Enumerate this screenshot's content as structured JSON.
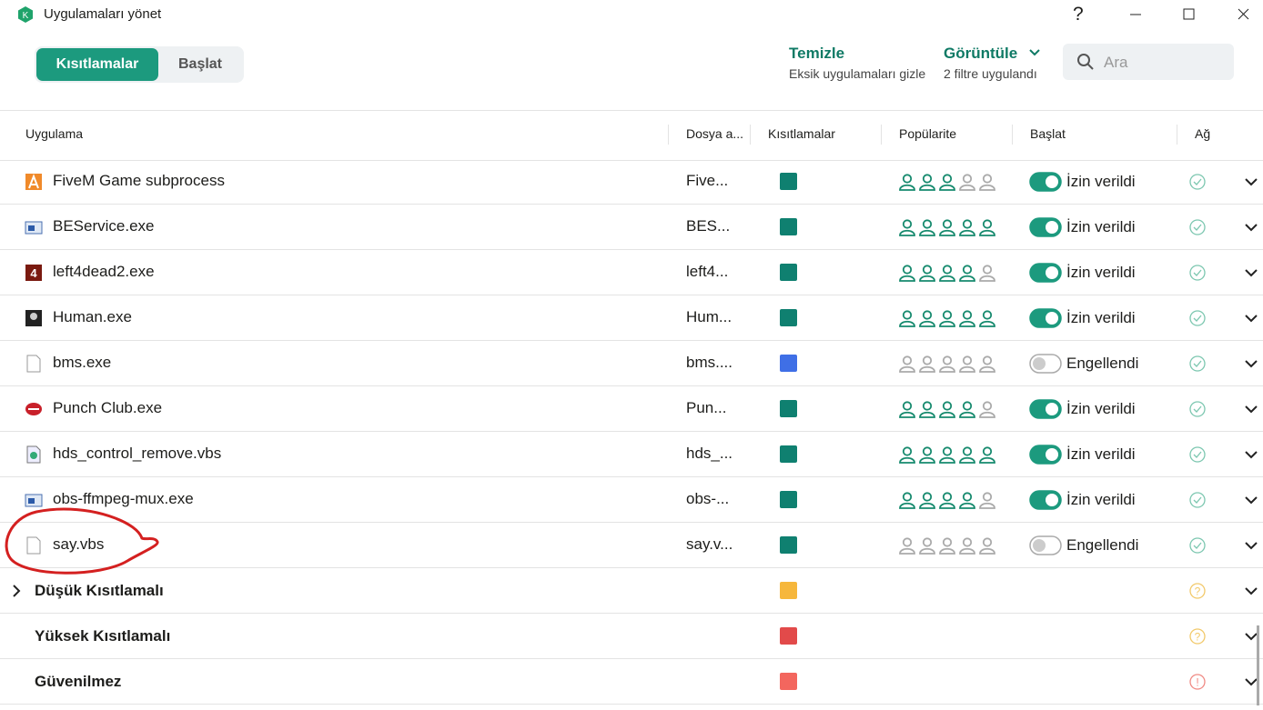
{
  "window": {
    "title": "Uygulamaları yönet",
    "help": "?"
  },
  "tabs": {
    "items": [
      "Kısıtlamalar",
      "Başlat"
    ],
    "active": 0
  },
  "actions": {
    "clean": {
      "title": "Temizle",
      "subtitle": "Eksik uygulamaları gizle"
    },
    "view": {
      "title": "Görüntüle",
      "subtitle": "2 filtre uygulandı"
    }
  },
  "search": {
    "placeholder": "Ara"
  },
  "columns": [
    "Uygulama",
    "Dosya a...",
    "Kısıtlamalar",
    "Popülarite",
    "Başlat",
    "Ağ"
  ],
  "rows": [
    {
      "name": "FiveM Game subprocess",
      "file": "Five...",
      "restriction_color": "#0f8070",
      "popularity": 3,
      "allowed": true,
      "status": "İzin verildi"
    },
    {
      "name": "BEService.exe",
      "file": "BES...",
      "restriction_color": "#0f8070",
      "popularity": 5,
      "allowed": true,
      "status": "İzin verildi"
    },
    {
      "name": "left4dead2.exe",
      "file": "left4...",
      "restriction_color": "#0f8070",
      "popularity": 4,
      "allowed": true,
      "status": "İzin verildi"
    },
    {
      "name": "Human.exe",
      "file": "Hum...",
      "restriction_color": "#0f8070",
      "popularity": 5,
      "allowed": true,
      "status": "İzin verildi"
    },
    {
      "name": "bms.exe",
      "file": "bms....",
      "restriction_color": "#3f6fe6",
      "popularity": 0,
      "allowed": false,
      "status": "Engellendi"
    },
    {
      "name": "Punch Club.exe",
      "file": "Pun...",
      "restriction_color": "#0f8070",
      "popularity": 4,
      "allowed": true,
      "status": "İzin verildi"
    },
    {
      "name": "hds_control_remove.vbs",
      "file": "hds_...",
      "restriction_color": "#0f8070",
      "popularity": 5,
      "allowed": true,
      "status": "İzin verildi"
    },
    {
      "name": "obs-ffmpeg-mux.exe",
      "file": "obs-...",
      "restriction_color": "#0f8070",
      "popularity": 4,
      "allowed": true,
      "status": "İzin verildi"
    },
    {
      "name": "say.vbs",
      "file": "say.v...",
      "restriction_color": "#0f8070",
      "popularity": 0,
      "allowed": false,
      "status": "Engellendi"
    }
  ],
  "groups": [
    {
      "name": "Düşük Kısıtlamalı",
      "color": "#f6b73c",
      "net": "?",
      "net_color": "#f2c96a"
    },
    {
      "name": "Yüksek Kısıtlamalı",
      "color": "#e24a4a",
      "net": "?",
      "net_color": "#f2c96a"
    },
    {
      "name": "Güvenilmez",
      "color": "#f3665e",
      "net": "!",
      "net_color": "#f08a84"
    }
  ]
}
